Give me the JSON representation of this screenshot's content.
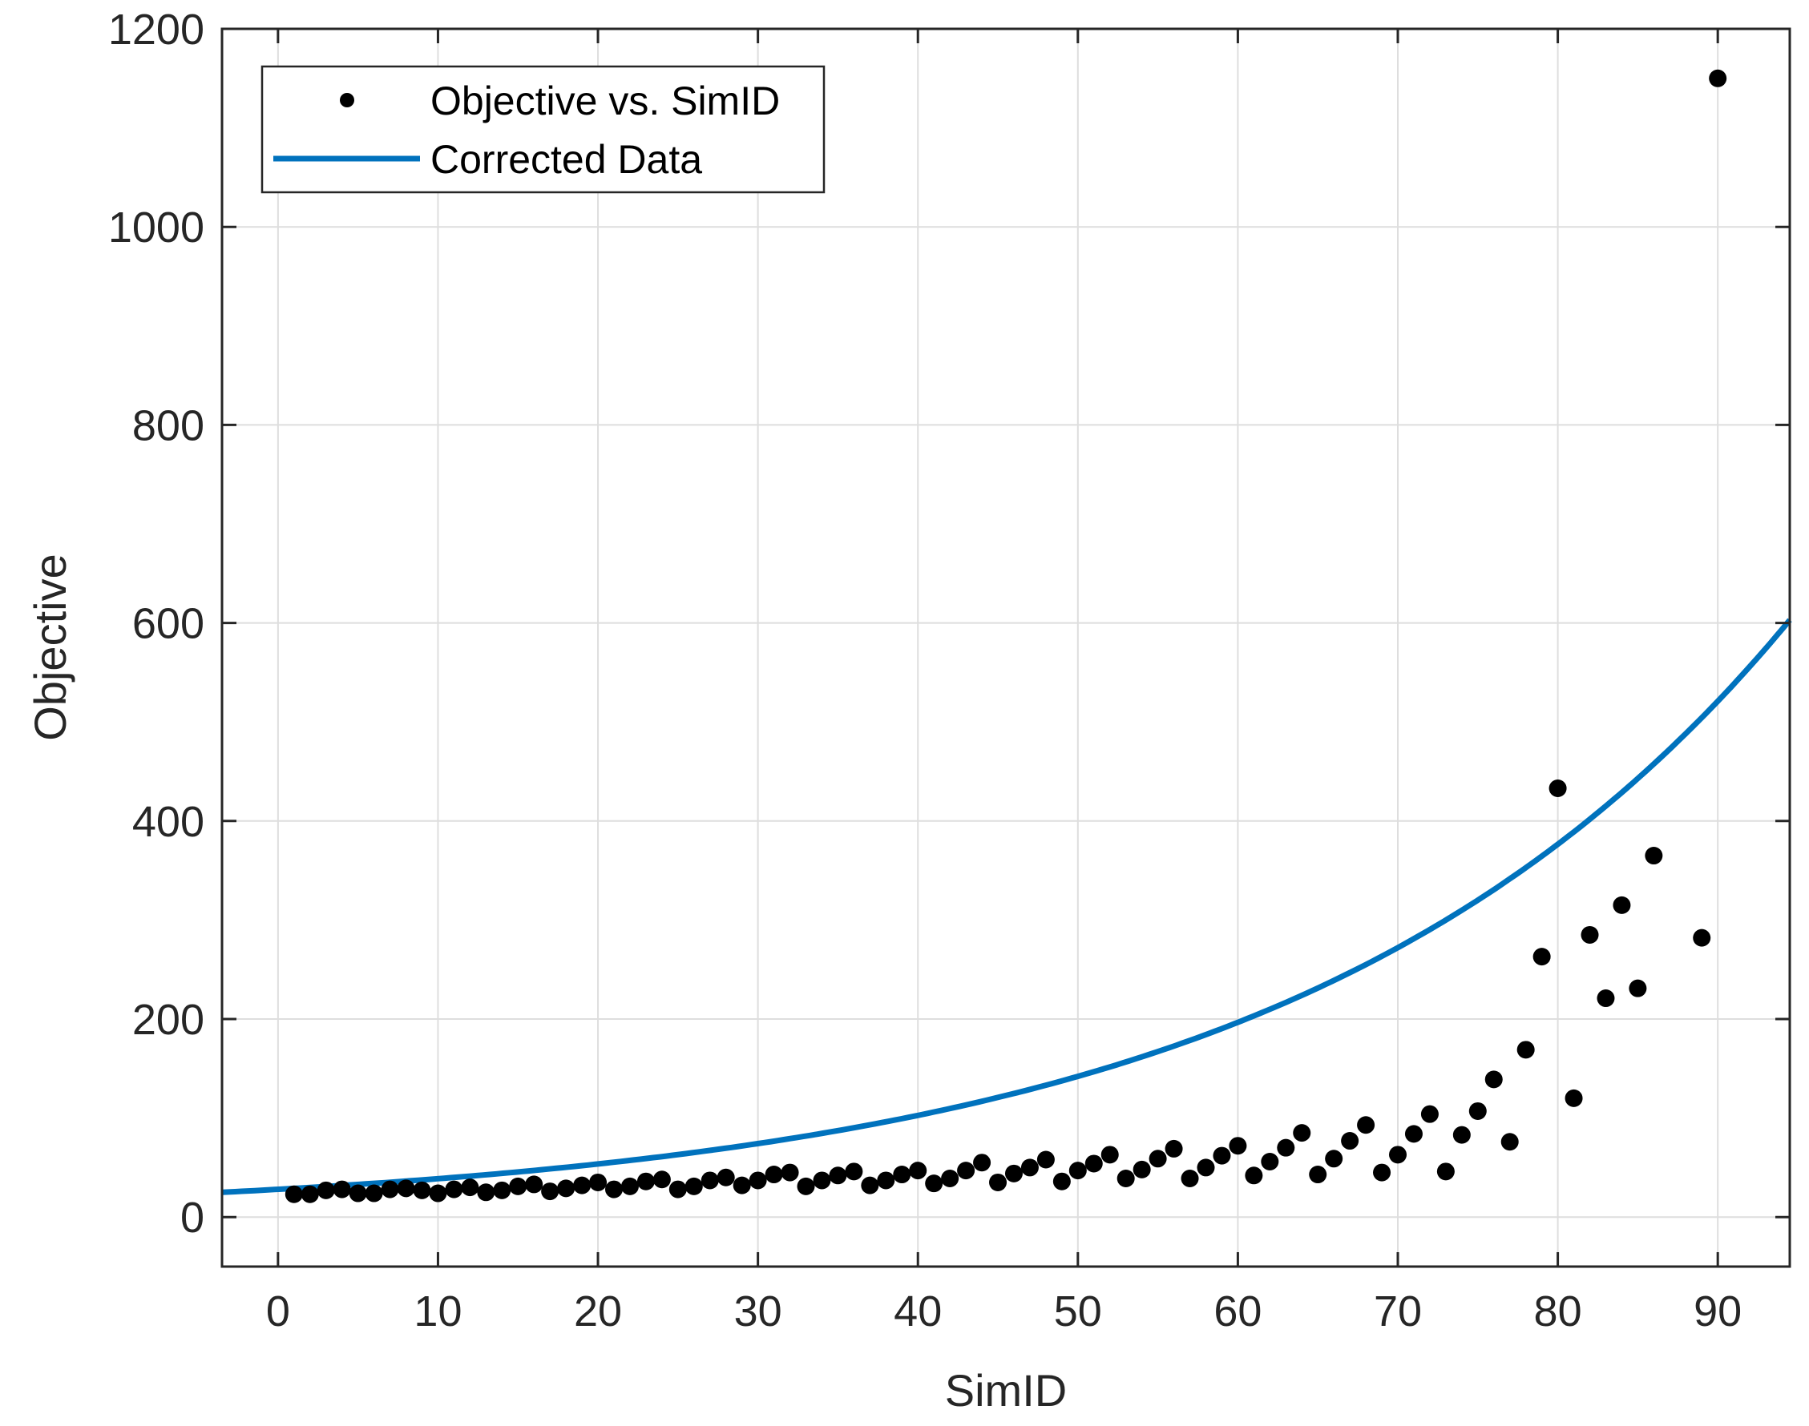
{
  "chart_data": {
    "type": "scatter",
    "xlabel": "SimID",
    "ylabel": "Objective",
    "xlim": [
      -3.5,
      94.5
    ],
    "ylim": [
      -50,
      1200
    ],
    "xticks": [
      0,
      10,
      20,
      30,
      40,
      50,
      60,
      70,
      80,
      90
    ],
    "yticks": [
      0,
      200,
      400,
      600,
      800,
      1000,
      1200
    ],
    "grid": true,
    "legend_position": "top-left",
    "series": [
      {
        "name": "Objective vs. SimID",
        "kind": "markers",
        "color": "#000000",
        "x": [
          1,
          2,
          3,
          4,
          5,
          6,
          7,
          8,
          9,
          10,
          11,
          12,
          13,
          14,
          15,
          16,
          17,
          18,
          19,
          20,
          21,
          22,
          23,
          24,
          25,
          26,
          27,
          28,
          29,
          30,
          31,
          32,
          33,
          34,
          35,
          36,
          37,
          38,
          39,
          40,
          41,
          42,
          43,
          44,
          45,
          46,
          47,
          48,
          49,
          50,
          51,
          52,
          53,
          54,
          55,
          56,
          57,
          58,
          59,
          60,
          61,
          62,
          63,
          64,
          65,
          66,
          67,
          68,
          69,
          70,
          71,
          72,
          73,
          74,
          75,
          76,
          77,
          78,
          79,
          80,
          81,
          82,
          83,
          84,
          85,
          86,
          89,
          90
        ],
        "y": [
          23,
          23,
          27,
          28,
          24,
          24,
          28,
          29,
          27,
          24,
          28,
          30,
          25,
          27,
          31,
          33,
          26,
          29,
          32,
          35,
          28,
          31,
          36,
          38,
          28,
          31,
          37,
          40,
          32,
          37,
          43,
          45,
          31,
          37,
          42,
          46,
          32,
          37,
          43,
          47,
          34,
          39,
          47,
          55,
          35,
          44,
          50,
          58,
          36,
          47,
          54,
          63,
          39,
          48,
          59,
          69,
          39,
          50,
          62,
          72,
          42,
          56,
          70,
          85,
          43,
          59,
          77,
          93,
          45,
          63,
          84,
          104,
          46,
          83,
          107,
          139,
          76,
          169,
          263,
          433,
          120,
          285,
          221,
          315,
          231,
          365,
          282,
          1150
        ]
      },
      {
        "name": "Corrected Data",
        "kind": "line",
        "color": "#0072BD",
        "x": [
          -3.5,
          94.5
        ],
        "y": [
          25,
          603
        ],
        "model": "exponential"
      }
    ]
  }
}
